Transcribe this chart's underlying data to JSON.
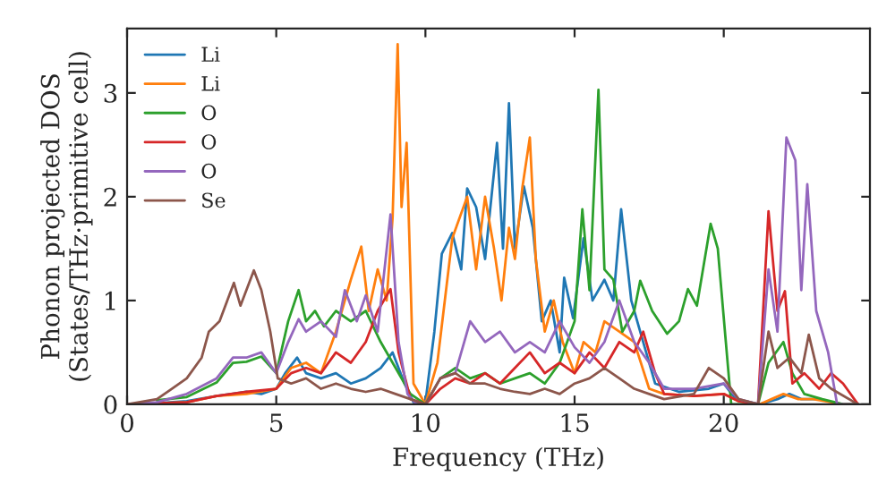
{
  "chart_data": {
    "type": "line",
    "xlabel": "Frequency (THz)",
    "ylabel": "Phonon projected DOS\n(States/THz·primitive cell)",
    "xlim": [
      0,
      24.9
    ],
    "ylim": [
      0,
      3.62
    ],
    "xticks": [
      0,
      5,
      10,
      15,
      20
    ],
    "yticks": [
      0,
      1,
      2,
      3
    ],
    "grid": false,
    "legend": "top left",
    "line_style": "solid",
    "marker": "none",
    "series": [
      {
        "name": "Li",
        "color": "#1f77b4",
        "x": [
          0,
          1,
          2,
          3,
          3.5,
          4,
          4.5,
          5,
          5.3,
          5.7,
          6,
          6.5,
          7,
          7.5,
          8,
          8.5,
          8.9,
          9.3,
          9.6,
          10,
          10.3,
          10.55,
          10.9,
          11.2,
          11.4,
          11.7,
          12,
          12.4,
          12.6,
          12.8,
          13.0,
          13.3,
          13.6,
          13.9,
          14.2,
          14.5,
          14.65,
          14.95,
          15.3,
          15.6,
          16.0,
          16.3,
          16.56,
          16.9,
          17.3,
          17.7,
          18.5,
          19.5,
          20,
          20.4,
          21.2,
          21.8,
          22.2,
          22.6,
          23.2
        ],
        "values": [
          0,
          0.01,
          0.03,
          0.08,
          0.1,
          0.12,
          0.1,
          0.15,
          0.3,
          0.45,
          0.3,
          0.25,
          0.3,
          0.2,
          0.25,
          0.35,
          0.5,
          0.2,
          0.02,
          0.02,
          0.7,
          1.45,
          1.65,
          1.3,
          2.08,
          1.9,
          1.4,
          2.52,
          1.5,
          2.9,
          1.5,
          2.1,
          1.7,
          0.8,
          1.0,
          0.5,
          1.22,
          0.83,
          1.6,
          1.0,
          1.2,
          1.0,
          1.88,
          1.0,
          0.6,
          0.2,
          0.12,
          0.15,
          0.2,
          0.05,
          0,
          0.05,
          0.1,
          0.05,
          0.05
        ]
      },
      {
        "name": "Li",
        "color": "#ff7f0e",
        "x": [
          0,
          2,
          3,
          4,
          5,
          5.5,
          6,
          6.5,
          7,
          7.5,
          7.85,
          8.1,
          8.4,
          8.7,
          8.9,
          9.07,
          9.2,
          9.37,
          9.6,
          10,
          10.4,
          10.9,
          11.4,
          11.7,
          12,
          12.3,
          12.55,
          12.8,
          13.0,
          13.25,
          13.5,
          13.7,
          14.0,
          14.3,
          14.6,
          15.0,
          15.3,
          15.7,
          16.0,
          16.5,
          17,
          17.5,
          18,
          19,
          20,
          20.5,
          21.2,
          21.6,
          22,
          22.5,
          23,
          24,
          24.5
        ],
        "values": [
          0,
          0.02,
          0.08,
          0.1,
          0.15,
          0.35,
          0.4,
          0.3,
          0.7,
          1.2,
          1.52,
          0.9,
          1.3,
          1.0,
          1.8,
          3.47,
          1.9,
          2.52,
          0.2,
          0,
          0.4,
          1.6,
          2.0,
          1.3,
          2.0,
          1.5,
          1.0,
          1.7,
          1.4,
          2.09,
          2.57,
          1.4,
          0.7,
          1.0,
          0.6,
          0.3,
          0.6,
          0.5,
          0.8,
          0.7,
          0.6,
          0.15,
          0.1,
          0.08,
          0.1,
          0.03,
          0,
          0.05,
          0.1,
          0.05,
          0.05,
          0,
          0
        ]
      },
      {
        "name": "O",
        "color": "#2ca02c",
        "x": [
          1,
          2,
          3,
          3.55,
          4,
          4.5,
          5,
          5.4,
          5.75,
          6,
          6.3,
          6.6,
          7,
          7.5,
          8,
          8.5,
          9,
          9.5,
          10,
          10.5,
          11,
          11.5,
          12,
          12.5,
          13,
          13.5,
          14,
          14.5,
          15,
          15.26,
          15.5,
          15.8,
          16,
          16.3,
          16.6,
          17,
          17.2,
          17.6,
          18.1,
          18.5,
          18.8,
          19.1,
          19.56,
          19.8,
          20.25,
          21.15,
          21.5,
          22.0,
          22.3,
          22.7,
          23.3,
          24,
          24.5
        ],
        "values": [
          0.04,
          0.07,
          0.21,
          0.4,
          0.41,
          0.46,
          0.3,
          0.8,
          1.1,
          0.8,
          0.9,
          0.75,
          0.9,
          0.8,
          0.9,
          0.6,
          0.35,
          0.1,
          0,
          0.25,
          0.35,
          0.25,
          0.3,
          0.2,
          0.25,
          0.3,
          0.2,
          0.4,
          0.8,
          1.88,
          1.1,
          3.03,
          1.3,
          1.2,
          0.7,
          0.9,
          1.19,
          0.9,
          0.68,
          0.8,
          1.11,
          0.95,
          1.74,
          1.5,
          0,
          0,
          0.4,
          0.6,
          0.3,
          0.1,
          0.05,
          0,
          0
        ]
      },
      {
        "name": "O",
        "color": "#d62728",
        "x": [
          0,
          2,
          3,
          4,
          5,
          5.5,
          6,
          6.5,
          7,
          7.5,
          8,
          8.4,
          8.83,
          9.1,
          9.5,
          10,
          10.5,
          11,
          11.5,
          12,
          12.5,
          13,
          13.5,
          14,
          14.5,
          15,
          15.5,
          16,
          16.5,
          17,
          17.3,
          17.7,
          18,
          19,
          20,
          20.5,
          21.15,
          21.5,
          21.8,
          22.05,
          22.3,
          22.7,
          23.2,
          23.6,
          24,
          24.5
        ],
        "values": [
          0,
          0.02,
          0.08,
          0.12,
          0.15,
          0.3,
          0.35,
          0.3,
          0.5,
          0.4,
          0.6,
          0.9,
          1.11,
          0.5,
          0.05,
          0,
          0.15,
          0.25,
          0.2,
          0.3,
          0.2,
          0.35,
          0.5,
          0.3,
          0.4,
          0.3,
          0.5,
          0.35,
          0.6,
          0.5,
          0.7,
          0.3,
          0.1,
          0.08,
          0.1,
          0.03,
          0,
          1.86,
          0.9,
          1.09,
          0.2,
          0.3,
          0.15,
          0.3,
          0.2,
          0
        ]
      },
      {
        "name": "O",
        "color": "#9467bd",
        "x": [
          0,
          1,
          2,
          3,
          3.55,
          4,
          4.5,
          5,
          5.4,
          5.75,
          6,
          6.5,
          7,
          7.3,
          7.7,
          8.0,
          8.4,
          8.83,
          9.1,
          9.4,
          9.7,
          10,
          10.5,
          11,
          11.5,
          12,
          12.5,
          13,
          13.5,
          14,
          14.5,
          15,
          15.5,
          16,
          16.5,
          17,
          17.5,
          18,
          19,
          20,
          20.5,
          21.15,
          21.5,
          21.8,
          22.1,
          22.4,
          22.6,
          22.8,
          23.1,
          23.5,
          23.8,
          24.5
        ],
        "values": [
          0,
          0.02,
          0.1,
          0.25,
          0.45,
          0.45,
          0.5,
          0.3,
          0.6,
          0.82,
          0.7,
          0.8,
          0.65,
          1.1,
          0.8,
          1.05,
          0.7,
          1.83,
          0.6,
          0.1,
          0,
          0,
          0.25,
          0.3,
          0.8,
          0.6,
          0.7,
          0.5,
          0.6,
          0.5,
          0.8,
          0.55,
          0.4,
          0.6,
          1.0,
          0.6,
          0.4,
          0.15,
          0.15,
          0.2,
          0.05,
          0,
          1.3,
          0.7,
          2.57,
          2.35,
          1.1,
          2.12,
          0.9,
          0.5,
          0,
          0
        ]
      },
      {
        "name": "Se",
        "color": "#8c564b",
        "x": [
          0,
          1,
          1.5,
          2,
          2.5,
          2.74,
          3.1,
          3.58,
          3.8,
          4.25,
          4.5,
          4.8,
          5.05,
          5.5,
          6,
          6.5,
          7,
          7.5,
          8,
          8.5,
          9,
          9.5,
          10,
          10.5,
          11,
          11.5,
          12,
          12.5,
          13,
          13.5,
          14,
          14.5,
          15,
          15.5,
          16,
          16.5,
          17,
          17.5,
          18,
          19,
          19.5,
          20,
          20.5,
          21.15,
          21.5,
          21.8,
          22.2,
          22.6,
          22.85,
          23.2,
          23.6,
          24.5
        ],
        "values": [
          0,
          0.05,
          0.15,
          0.25,
          0.45,
          0.7,
          0.8,
          1.17,
          0.95,
          1.29,
          1.1,
          0.7,
          0.25,
          0.2,
          0.25,
          0.15,
          0.2,
          0.15,
          0.12,
          0.15,
          0.1,
          0.05,
          0,
          0.25,
          0.3,
          0.2,
          0.2,
          0.15,
          0.12,
          0.1,
          0.15,
          0.1,
          0.2,
          0.25,
          0.35,
          0.25,
          0.15,
          0.1,
          0.05,
          0.1,
          0.35,
          0.25,
          0.05,
          0,
          0.7,
          0.35,
          0.45,
          0.3,
          0.67,
          0.25,
          0.15,
          0
        ]
      }
    ]
  }
}
